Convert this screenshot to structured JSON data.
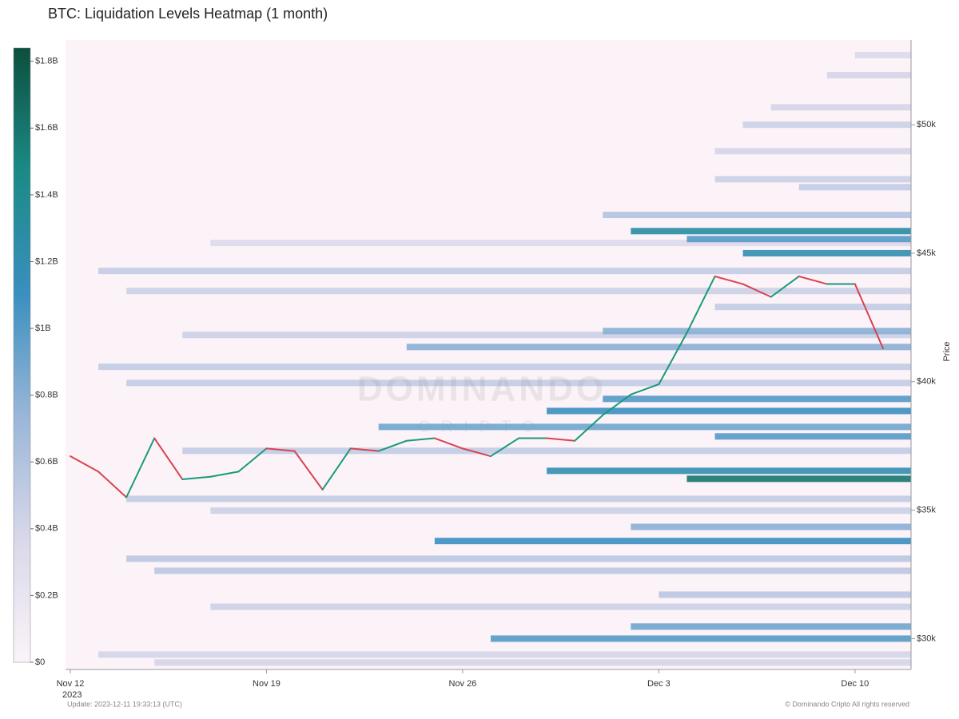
{
  "chart_data": {
    "type": "heatmap",
    "title": "BTC: Liquidation Levels Heatmap (1 month)",
    "y_label": "Price",
    "x_sublabel": "2023",
    "update": "Update: 2023-12-11 19:33:13 (UTC)",
    "copyright": "© Dominando Cripto All rights reserved",
    "watermark": [
      "DOMINANDO",
      "CRIPTO"
    ],
    "xlim": [
      "2023-11-12",
      "2023-12-12"
    ],
    "xticks": [
      {
        "value": "2023-11-12",
        "label": "Nov 12"
      },
      {
        "value": "2023-11-19",
        "label": "Nov 19"
      },
      {
        "value": "2023-11-26",
        "label": "Nov 26"
      },
      {
        "value": "2023-12-03",
        "label": "Dec 3"
      },
      {
        "value": "2023-12-10",
        "label": "Dec 10"
      }
    ],
    "ylim": [
      28800,
      53300
    ],
    "yticks": [
      {
        "value": 30000,
        "label": "$30k"
      },
      {
        "value": 35000,
        "label": "$35k"
      },
      {
        "value": 40000,
        "label": "$40k"
      },
      {
        "value": 45000,
        "label": "$45k"
      },
      {
        "value": 50000,
        "label": "$50k"
      }
    ],
    "clim": [
      0,
      1.84
    ],
    "cticks": [
      {
        "value": 0,
        "label": "$0"
      },
      {
        "value": 0.2,
        "label": "$0.2B"
      },
      {
        "value": 0.4,
        "label": "$0.4B"
      },
      {
        "value": 0.6,
        "label": "$0.6B"
      },
      {
        "value": 0.8,
        "label": "$0.8B"
      },
      {
        "value": 1,
        "label": "$1B"
      },
      {
        "value": 1.2,
        "label": "$1.2B"
      },
      {
        "value": 1.4,
        "label": "$1.4B"
      },
      {
        "value": 1.6,
        "label": "$1.6B"
      },
      {
        "value": 1.8,
        "label": "$1.8B"
      }
    ],
    "colorscale": [
      "#fbf3f8",
      "#d9d8ea",
      "#9ab6d8",
      "#3a8fbf",
      "#1b8a86",
      "#0d4f3e"
    ],
    "levels": [
      {
        "price": 44310,
        "start": "2023-11-13",
        "value": 0.5
      },
      {
        "price": 43530,
        "start": "2023-11-14",
        "value": 0.45
      },
      {
        "price": 40580,
        "start": "2023-11-13",
        "value": 0.5
      },
      {
        "price": 39950,
        "start": "2023-11-14",
        "value": 0.5
      },
      {
        "price": 35440,
        "start": "2023-11-14",
        "value": 0.5
      },
      {
        "price": 33110,
        "start": "2023-11-14",
        "value": 0.55
      },
      {
        "price": 32640,
        "start": "2023-11-15",
        "value": 0.55
      },
      {
        "price": 31710,
        "start": "2023-12-03",
        "value": 0.55
      },
      {
        "price": 29380,
        "start": "2023-11-13",
        "value": 0.4
      },
      {
        "price": 29070,
        "start": "2023-11-15",
        "value": 0.4
      },
      {
        "price": 45400,
        "start": "2023-11-17",
        "value": 0.35
      },
      {
        "price": 47880,
        "start": "2023-12-05",
        "value": 0.45
      },
      {
        "price": 48970,
        "start": "2023-12-05",
        "value": 0.4
      },
      {
        "price": 50000,
        "start": "2023-12-06",
        "value": 0.45
      },
      {
        "price": 50680,
        "start": "2023-12-07",
        "value": 0.4
      },
      {
        "price": 51930,
        "start": "2023-12-09",
        "value": 0.4
      },
      {
        "price": 52710,
        "start": "2023-12-10",
        "value": 0.35
      },
      {
        "price": 47570,
        "start": "2023-12-08",
        "value": 0.5
      },
      {
        "price": 41820,
        "start": "2023-11-16",
        "value": 0.45
      },
      {
        "price": 37310,
        "start": "2023-11-16",
        "value": 0.5
      },
      {
        "price": 34980,
        "start": "2023-11-17",
        "value": 0.45
      },
      {
        "price": 31240,
        "start": "2023-11-17",
        "value": 0.45
      },
      {
        "price": 42910,
        "start": "2023-12-05",
        "value": 0.5
      },
      {
        "price": 46490,
        "start": "2023-12-01",
        "value": 0.6
      },
      {
        "price": 38240,
        "start": "2023-11-23",
        "value": 0.9
      },
      {
        "price": 41350,
        "start": "2023-11-24",
        "value": 0.8
      },
      {
        "price": 41970,
        "start": "2023-12-01",
        "value": 0.8
      },
      {
        "price": 30470,
        "start": "2023-12-02",
        "value": 0.9
      },
      {
        "price": 34350,
        "start": "2023-12-02",
        "value": 0.8
      },
      {
        "price": 30000,
        "start": "2023-11-27",
        "value": 1.0
      },
      {
        "price": 33800,
        "start": "2023-11-25",
        "value": 1.1
      },
      {
        "price": 36530,
        "start": "2023-11-29",
        "value": 1.2
      },
      {
        "price": 36220,
        "start": "2023-12-04",
        "value": 1.6
      },
      {
        "price": 37870,
        "start": "2023-12-05",
        "value": 1.0
      },
      {
        "price": 38860,
        "start": "2023-11-29",
        "value": 1.1
      },
      {
        "price": 39330,
        "start": "2023-12-01",
        "value": 1.0
      },
      {
        "price": 45550,
        "start": "2023-12-04",
        "value": 1.0
      },
      {
        "price": 45860,
        "start": "2023-12-02",
        "value": 1.3
      },
      {
        "price": 45000,
        "start": "2023-12-06",
        "value": 1.2
      }
    ],
    "price": {
      "name": "BTC",
      "up_color": "#1a9a7a",
      "down_color": "#d9434f",
      "x": [
        "2023-11-12",
        "2023-11-13",
        "2023-11-14",
        "2023-11-15",
        "2023-11-16",
        "2023-11-17",
        "2023-11-18",
        "2023-11-19",
        "2023-11-20",
        "2023-11-21",
        "2023-11-22",
        "2023-11-23",
        "2023-11-24",
        "2023-11-25",
        "2023-11-26",
        "2023-11-27",
        "2023-11-28",
        "2023-11-29",
        "2023-11-30",
        "2023-12-01",
        "2023-12-02",
        "2023-12-03",
        "2023-12-04",
        "2023-12-05",
        "2023-12-06",
        "2023-12-07",
        "2023-12-08",
        "2023-12-09",
        "2023-12-10",
        "2023-12-11"
      ],
      "values": [
        37100,
        36500,
        35500,
        37800,
        36200,
        36300,
        36500,
        37400,
        37300,
        35800,
        37400,
        37300,
        37700,
        37800,
        37400,
        37100,
        37800,
        37800,
        37700,
        38700,
        39500,
        39900,
        41900,
        44100,
        43800,
        43300,
        44100,
        43800,
        43800,
        41300
      ]
    }
  }
}
